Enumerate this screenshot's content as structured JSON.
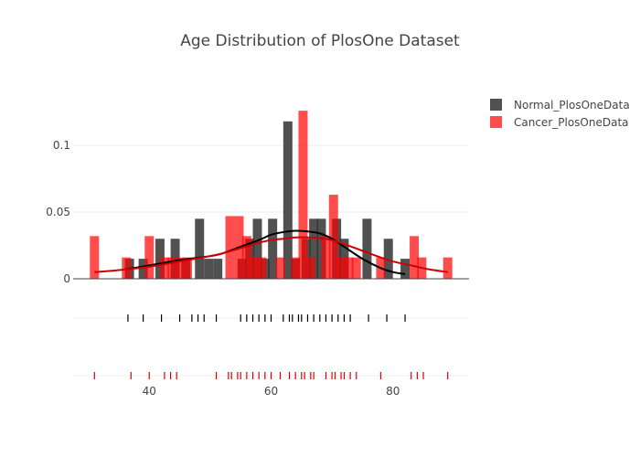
{
  "chart_data": {
    "type": "bar",
    "title": "Age Distribution of PlosOne Dataset",
    "xlabel": "",
    "ylabel": "",
    "xlim": [
      27.5,
      92.5
    ],
    "ylim": [
      0,
      0.135
    ],
    "x_ticks": [
      40,
      60,
      80
    ],
    "y_ticks": [
      0,
      0.05,
      0.1
    ],
    "y_tick_labels": [
      "0",
      "0.05",
      "0.1"
    ],
    "grid": true,
    "legend_position": "top-right",
    "bin_width": 1.5,
    "series": [
      {
        "name": "Normal_PlosOneData",
        "color": "#333333",
        "opacity": 0.85,
        "hist": [
          {
            "x": 36.75,
            "y": 0.015
          },
          {
            "x": 39.0,
            "y": 0.015
          },
          {
            "x": 41.75,
            "y": 0.03
          },
          {
            "x": 44.25,
            "y": 0.03
          },
          {
            "x": 46.0,
            "y": 0.015
          },
          {
            "x": 48.25,
            "y": 0.045
          },
          {
            "x": 49.75,
            "y": 0.015
          },
          {
            "x": 51.25,
            "y": 0.015
          },
          {
            "x": 55.25,
            "y": 0.015
          },
          {
            "x": 56.5,
            "y": 0.03
          },
          {
            "x": 57.75,
            "y": 0.045
          },
          {
            "x": 59.0,
            "y": 0.015
          },
          {
            "x": 60.25,
            "y": 0.045
          },
          {
            "x": 62.75,
            "y": 0.118
          },
          {
            "x": 64.0,
            "y": 0.015
          },
          {
            "x": 65.75,
            "y": 0.03
          },
          {
            "x": 67.0,
            "y": 0.045
          },
          {
            "x": 68.25,
            "y": 0.045
          },
          {
            "x": 70.75,
            "y": 0.045
          },
          {
            "x": 72.0,
            "y": 0.03
          },
          {
            "x": 75.75,
            "y": 0.045
          },
          {
            "x": 79.25,
            "y": 0.03
          },
          {
            "x": 82.0,
            "y": 0.015
          }
        ],
        "kde_x": [
          36,
          40,
          45,
          50,
          52,
          55,
          58,
          60,
          62,
          64,
          66,
          68,
          70,
          72,
          75,
          78,
          80,
          82
        ],
        "kde_y": [
          0.007,
          0.01,
          0.014,
          0.017,
          0.019,
          0.024,
          0.029,
          0.033,
          0.035,
          0.036,
          0.0355,
          0.034,
          0.03,
          0.024,
          0.015,
          0.008,
          0.005,
          0.0035
        ],
        "rug": [
          36.5,
          39,
          42,
          45,
          47,
          48,
          49,
          51,
          55,
          56,
          57,
          58,
          59,
          60,
          62,
          63,
          63.5,
          64.5,
          65,
          66,
          67,
          68,
          69,
          70,
          71,
          72,
          73,
          76,
          79,
          82
        ]
      },
      {
        "name": "Cancer_PlosOneData",
        "color": "#ff0000",
        "opacity": 0.7,
        "hist": [
          {
            "x": 31.0,
            "y": 0.032
          },
          {
            "x": 36.25,
            "y": 0.016
          },
          {
            "x": 40.0,
            "y": 0.032
          },
          {
            "x": 42.5,
            "y": 0.016
          },
          {
            "x": 43.75,
            "y": 0.016
          },
          {
            "x": 45.0,
            "y": 0.016
          },
          {
            "x": 46.25,
            "y": 0.016
          },
          {
            "x": 53.25,
            "y": 0.047
          },
          {
            "x": 54.75,
            "y": 0.047
          },
          {
            "x": 56.0,
            "y": 0.032
          },
          {
            "x": 57.25,
            "y": 0.016
          },
          {
            "x": 58.5,
            "y": 0.016
          },
          {
            "x": 61.5,
            "y": 0.016
          },
          {
            "x": 64.0,
            "y": 0.016
          },
          {
            "x": 65.25,
            "y": 0.126
          },
          {
            "x": 66.5,
            "y": 0.016
          },
          {
            "x": 69.0,
            "y": 0.032
          },
          {
            "x": 70.25,
            "y": 0.063
          },
          {
            "x": 71.5,
            "y": 0.016
          },
          {
            "x": 72.75,
            "y": 0.016
          },
          {
            "x": 74.0,
            "y": 0.016
          },
          {
            "x": 78.0,
            "y": 0.016
          },
          {
            "x": 83.5,
            "y": 0.032
          },
          {
            "x": 84.75,
            "y": 0.016
          },
          {
            "x": 89.0,
            "y": 0.016
          }
        ],
        "kde_x": [
          31,
          35,
          40,
          45,
          50,
          52,
          55,
          58,
          60,
          62,
          64,
          66,
          68,
          70,
          72,
          75,
          78,
          80,
          83,
          86,
          89
        ],
        "kde_y": [
          0.005,
          0.0065,
          0.009,
          0.013,
          0.017,
          0.019,
          0.023,
          0.027,
          0.029,
          0.03,
          0.031,
          0.031,
          0.0305,
          0.029,
          0.026,
          0.021,
          0.016,
          0.013,
          0.01,
          0.007,
          0.005
        ],
        "rug": [
          31,
          37,
          40,
          42.5,
          43.5,
          44.5,
          51,
          53,
          53.5,
          54.5,
          55,
          56,
          57,
          58,
          59,
          60,
          61.5,
          63,
          64,
          65,
          65.5,
          66.5,
          67,
          69,
          70,
          70.5,
          71.5,
          72,
          73,
          74,
          78,
          83,
          84,
          85,
          89
        ]
      }
    ]
  }
}
